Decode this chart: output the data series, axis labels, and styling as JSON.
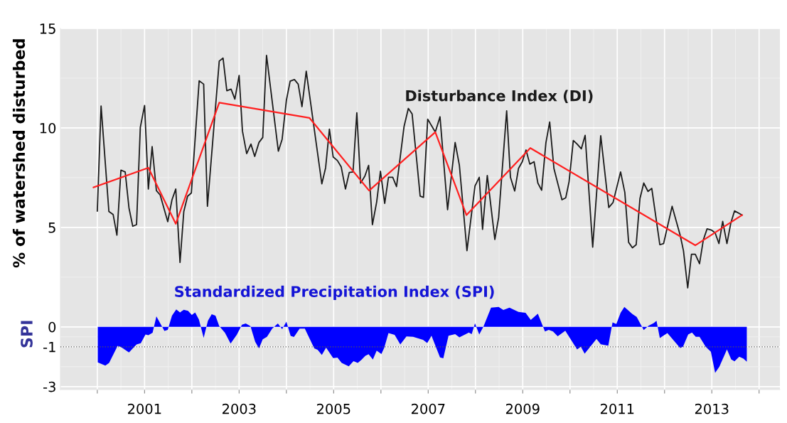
{
  "chart_data": {
    "type": "line",
    "ylabel": "% of watershed disturbed",
    "annotations": [
      "SPI"
    ],
    "xlim": [
      1999.22,
      2014.44
    ],
    "xticks": [
      {
        "value": 2000,
        "label": null
      },
      2001,
      {
        "value": 2002,
        "label": null
      },
      2003,
      {
        "value": 2004,
        "label": null
      },
      2005,
      {
        "value": 2006,
        "label": null
      },
      2007,
      {
        "value": 2008,
        "label": null
      },
      2009,
      {
        "value": 2010,
        "label": null
      },
      2011,
      {
        "value": 2012,
        "label": null
      },
      2013,
      {
        "value": 2014,
        "label": null
      }
    ],
    "ylim": [
      -3.15,
      15
    ],
    "yticks": [
      -3,
      -1,
      0,
      5,
      10,
      15
    ],
    "grid": true,
    "ref_lines": [
      {
        "axis": "y",
        "value": -1,
        "color": "#555555",
        "line_style": "dotted"
      }
    ],
    "series": [
      {
        "name": "Disturbance Index (DI)",
        "color": "#1a1a1a",
        "x": [
          2000.0,
          2000.08,
          2000.245,
          2000.335,
          2000.415,
          2000.5,
          2000.59,
          2000.67,
          2000.75,
          2000.83,
          2000.91,
          2001.0,
          2001.08,
          2001.16,
          2001.25,
          2001.33,
          2001.49,
          2001.58,
          2001.66,
          2001.75,
          2001.83,
          2001.91,
          2001.99,
          2002.155,
          2002.25,
          2002.33,
          2002.58,
          2002.66,
          2002.74,
          2002.83,
          2002.91,
          2003.0,
          2003.07,
          2003.16,
          2003.25,
          2003.33,
          2003.42,
          2003.5,
          2003.58,
          2003.83,
          2003.91,
          2004.0,
          2004.08,
          2004.17,
          2004.25,
          2004.33,
          2004.42,
          2004.75,
          2004.83,
          2004.91,
          2004.99,
          2005.08,
          2005.16,
          2005.25,
          2005.33,
          2005.41,
          2005.49,
          2005.57,
          2005.66,
          2005.74,
          2005.82,
          2005.91,
          2005.99,
          2006.08,
          2006.16,
          2006.25,
          2006.33,
          2006.49,
          2006.58,
          2006.66,
          2006.76,
          2006.83,
          2006.9,
          2006.99,
          2007.15,
          2007.25,
          2007.41,
          2007.57,
          2007.66,
          2007.82,
          2007.99,
          2008.08,
          2008.15,
          2008.25,
          2008.41,
          2008.49,
          2008.66,
          2008.74,
          2008.83,
          2008.91,
          2008.99,
          2009.07,
          2009.15,
          2009.24,
          2009.32,
          2009.4,
          2009.49,
          2009.57,
          2009.66,
          2009.83,
          2009.91,
          2009.98,
          2010.07,
          2010.15,
          2010.24,
          2010.32,
          2010.48,
          2010.65,
          2010.82,
          2010.91,
          2011.07,
          2011.16,
          2011.24,
          2011.32,
          2011.4,
          2011.48,
          2011.56,
          2011.65,
          2011.73,
          2011.9,
          2011.98,
          2012.16,
          2012.33,
          2012.4,
          2012.49,
          2012.57,
          2012.65,
          2012.74,
          2012.82,
          2012.9,
          2012.99,
          2013.07,
          2013.15,
          2013.23,
          2013.32,
          2013.4,
          2013.48,
          2013.58,
          2013.64
        ],
        "values": [
          5.82,
          11.1,
          5.8,
          5.65,
          4.61,
          7.88,
          7.79,
          5.98,
          5.06,
          5.14,
          10.03,
          11.13,
          6.93,
          9.06,
          6.85,
          6.63,
          5.29,
          6.39,
          6.93,
          3.24,
          5.8,
          6.57,
          6.73,
          12.37,
          12.2,
          6.06,
          13.36,
          13.51,
          11.87,
          11.95,
          11.45,
          12.64,
          9.85,
          8.71,
          9.19,
          8.57,
          9.27,
          9.52,
          13.65,
          8.83,
          9.43,
          11.39,
          12.35,
          12.43,
          12.2,
          11.07,
          12.85,
          7.19,
          8.0,
          9.94,
          8.54,
          8.36,
          8.04,
          6.93,
          7.76,
          7.79,
          10.76,
          7.23,
          7.58,
          8.12,
          5.14,
          6.28,
          7.82,
          6.21,
          7.52,
          7.52,
          7.05,
          10.08,
          10.98,
          10.7,
          8.3,
          6.57,
          6.51,
          10.44,
          9.79,
          10.56,
          5.89,
          9.27,
          8.12,
          3.83,
          7.08,
          7.52,
          4.9,
          7.61,
          4.39,
          5.5,
          10.86,
          7.52,
          6.83,
          7.96,
          8.3,
          8.89,
          8.18,
          8.3,
          7.23,
          6.87,
          9.25,
          10.3,
          7.96,
          6.39,
          6.49,
          7.29,
          9.37,
          9.19,
          8.95,
          9.63,
          4.01,
          9.61,
          6.0,
          6.25,
          7.79,
          6.75,
          4.25,
          3.98,
          4.13,
          6.45,
          7.23,
          6.81,
          6.96,
          4.13,
          4.19,
          6.06,
          4.61,
          3.83,
          1.96,
          3.65,
          3.65,
          3.18,
          4.37,
          4.93,
          4.87,
          4.73,
          4.19,
          5.3,
          4.19,
          5.2,
          5.83,
          5.7,
          5.62
        ]
      },
      {
        "color": "#ff2020",
        "x": [
          1999.92,
          2001.08,
          2001.66,
          2002.58,
          2004.49,
          2005.75,
          2007.15,
          2007.81,
          2009.16,
          2012.65,
          2013.64
        ],
        "values": [
          7.01,
          8.0,
          5.18,
          11.27,
          10.5,
          6.85,
          9.79,
          5.62,
          8.99,
          4.1,
          5.62
        ]
      },
      {
        "name": "Standardized Precipitation Index (SPI)",
        "type": "area",
        "color": "#0000ff",
        "x": [
          2000.01,
          2000.17,
          2000.25,
          2000.43,
          2000.51,
          2000.67,
          2000.83,
          2000.92,
          2001.02,
          2001.08,
          2001.17,
          2001.25,
          2001.42,
          2001.49,
          2001.58,
          2001.67,
          2001.75,
          2001.83,
          2001.92,
          2002.0,
          2002.07,
          2002.15,
          2002.25,
          2002.34,
          2002.42,
          2002.5,
          2002.58,
          2002.7,
          2002.82,
          2002.95,
          2003.06,
          2003.14,
          2003.24,
          2003.34,
          2003.42,
          2003.5,
          2003.59,
          2003.7,
          2003.82,
          2003.91,
          2004.0,
          2004.09,
          2004.16,
          2004.28,
          2004.39,
          2004.59,
          2004.66,
          2004.75,
          2004.84,
          2004.99,
          2005.08,
          2005.17,
          2005.32,
          2005.42,
          2005.51,
          2005.59,
          2005.67,
          2005.74,
          2005.83,
          2005.91,
          2006.01,
          2006.07,
          2006.16,
          2006.29,
          2006.41,
          2006.54,
          2006.68,
          2006.89,
          2006.98,
          2007.07,
          2007.25,
          2007.32,
          2007.43,
          2007.57,
          2007.66,
          2007.78,
          2007.86,
          2007.92,
          2007.99,
          2008.08,
          2008.17,
          2008.33,
          2008.49,
          2008.59,
          2008.72,
          2008.91,
          2009.06,
          2009.17,
          2009.32,
          2009.47,
          2009.55,
          2009.64,
          2009.74,
          2009.9,
          2010.15,
          2010.23,
          2010.31,
          2010.56,
          2010.65,
          2010.81,
          2010.9,
          2010.98,
          2011.07,
          2011.15,
          2011.32,
          2011.41,
          2011.56,
          2011.66,
          2011.77,
          2011.83,
          2011.9,
          2012.06,
          2012.33,
          2012.39,
          2012.5,
          2012.58,
          2012.66,
          2012.74,
          2012.87,
          2012.98,
          2013.07,
          2013.16,
          2013.32,
          2013.41,
          2013.48,
          2013.58,
          2013.67,
          2013.74
        ],
        "values": [
          -1.78,
          -1.94,
          -1.81,
          -0.95,
          -1.02,
          -1.28,
          -0.88,
          -0.82,
          -0.38,
          -0.42,
          -0.29,
          0.53,
          -0.2,
          -0.15,
          0.57,
          0.88,
          0.73,
          0.86,
          0.81,
          0.6,
          0.73,
          0.37,
          -0.55,
          0.31,
          0.64,
          0.57,
          0.04,
          -0.29,
          -0.84,
          -0.4,
          0.11,
          0.17,
          0.04,
          -0.75,
          -1.08,
          -0.62,
          -0.5,
          -0.09,
          0.17,
          -0.11,
          0.26,
          -0.45,
          -0.51,
          -0.09,
          -0.09,
          -1.08,
          -1.15,
          -1.41,
          -1.04,
          -1.57,
          -1.54,
          -1.81,
          -1.98,
          -1.72,
          -1.81,
          -1.65,
          -1.45,
          -1.37,
          -1.64,
          -1.19,
          -1.36,
          -1.05,
          -0.31,
          -0.4,
          -0.88,
          -0.48,
          -0.5,
          -0.65,
          -0.81,
          -0.44,
          -1.53,
          -1.58,
          -0.44,
          -0.36,
          -0.52,
          -0.38,
          -0.28,
          -0.36,
          0.18,
          -0.38,
          0.02,
          0.97,
          1.0,
          0.85,
          0.97,
          0.75,
          0.71,
          0.35,
          0.66,
          -0.23,
          -0.15,
          -0.23,
          -0.47,
          -0.19,
          -1.13,
          -1.0,
          -1.35,
          -0.6,
          -0.87,
          -0.94,
          0.23,
          0.15,
          0.71,
          1.0,
          0.65,
          0.5,
          -0.16,
          0.06,
          0.19,
          0.31,
          -0.56,
          -0.31,
          -1.06,
          -1.0,
          -0.38,
          -0.28,
          -0.5,
          -0.5,
          -1.0,
          -1.25,
          -2.31,
          -2.0,
          -1.13,
          -1.63,
          -1.73,
          -1.5,
          -1.6,
          -1.75
        ]
      }
    ]
  }
}
